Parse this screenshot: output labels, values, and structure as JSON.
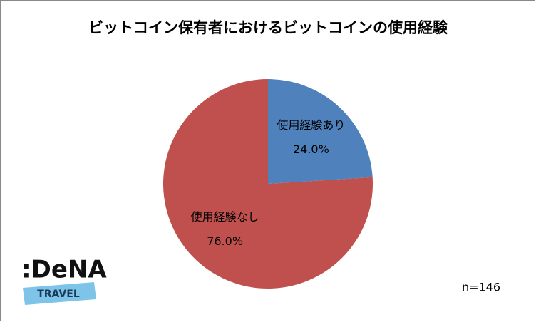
{
  "chart_data": {
    "type": "pie",
    "title": "ビットコイン保有者におけるビットコインの使用経験",
    "categories": [
      "使用経験あり",
      "使用経験なし"
    ],
    "values": [
      24.0,
      76.0
    ],
    "value_labels": [
      "24.0%",
      "76.0%"
    ],
    "colors": [
      "#4f81bd",
      "#c0504d"
    ],
    "annotation": "n=146"
  },
  "logo": {
    "name": ":DeNA",
    "tagline": "TRAVEL"
  }
}
